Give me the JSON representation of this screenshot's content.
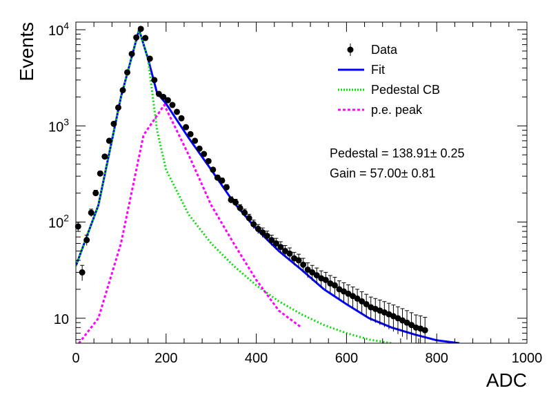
{
  "chart_data": {
    "type": "line",
    "xlabel": "ADC",
    "ylabel": "Events",
    "xlim": [
      0,
      1000
    ],
    "ylim": [
      5.5,
      12000
    ],
    "yscale": "log",
    "grid": false,
    "legend_position": "top-right",
    "x_ticks": [
      "0",
      "200",
      "400",
      "600",
      "800",
      "1000"
    ],
    "y_ticks": [
      {
        "value": 10,
        "base": "10",
        "exp": ""
      },
      {
        "value": 100,
        "base": "10",
        "exp": "2"
      },
      {
        "value": 1000,
        "base": "10",
        "exp": "3"
      },
      {
        "value": 10000,
        "base": "10",
        "exp": "4"
      }
    ],
    "legend": [
      {
        "label": "Data",
        "style": "marker",
        "color": "#000000"
      },
      {
        "label": "Fit",
        "style": "solid",
        "color": "#0000ff"
      },
      {
        "label": "Pedestal CB",
        "style": "dotted",
        "color": "#00dd00"
      },
      {
        "label": "p.e. peak",
        "style": "dashed",
        "color": "#ff00ff"
      }
    ],
    "annotations": [
      "Pedestal = 138.91± 0.25",
      "Gain = 57.00± 0.81"
    ],
    "series": [
      {
        "name": "Data",
        "color": "#000000",
        "points": [
          [
            5,
            90
          ],
          [
            14,
            30
          ],
          [
            24,
            65
          ],
          [
            34,
            125
          ],
          [
            44,
            200
          ],
          [
            54,
            320
          ],
          [
            64,
            480
          ],
          [
            74,
            700
          ],
          [
            84,
            1050
          ],
          [
            94,
            1550
          ],
          [
            104,
            2350
          ],
          [
            114,
            3600
          ],
          [
            124,
            5600
          ],
          [
            134,
            8300
          ],
          [
            144,
            10200
          ],
          [
            154,
            8200
          ],
          [
            164,
            5000
          ],
          [
            174,
            3000
          ],
          [
            184,
            2150
          ],
          [
            194,
            2000
          ],
          [
            204,
            1850
          ],
          [
            214,
            1650
          ],
          [
            224,
            1400
          ],
          [
            234,
            1200
          ],
          [
            244,
            970
          ],
          [
            254,
            820
          ],
          [
            264,
            700
          ],
          [
            274,
            580
          ],
          [
            284,
            510
          ],
          [
            294,
            430
          ],
          [
            304,
            350
          ],
          [
            314,
            290
          ],
          [
            324,
            270
          ],
          [
            334,
            230
          ],
          [
            344,
            170
          ],
          [
            354,
            160
          ],
          [
            364,
            140
          ],
          [
            374,
            125
          ],
          [
            384,
            110
          ],
          [
            394,
            95
          ],
          [
            404,
            85
          ],
          [
            414,
            78
          ],
          [
            424,
            72
          ],
          [
            434,
            65
          ],
          [
            444,
            60
          ],
          [
            454,
            55
          ],
          [
            464,
            50
          ],
          [
            474,
            47
          ],
          [
            484,
            42
          ],
          [
            494,
            40
          ],
          [
            504,
            36
          ],
          [
            514,
            32
          ],
          [
            524,
            30
          ],
          [
            534,
            28
          ],
          [
            544,
            26
          ],
          [
            554,
            25
          ],
          [
            564,
            23
          ],
          [
            574,
            22
          ],
          [
            584,
            20
          ],
          [
            594,
            19
          ],
          [
            604,
            18
          ],
          [
            614,
            17
          ],
          [
            624,
            16
          ],
          [
            634,
            15
          ],
          [
            644,
            14
          ],
          [
            654,
            13
          ],
          [
            664,
            12.5
          ],
          [
            674,
            12
          ],
          [
            684,
            11.5
          ],
          [
            694,
            11
          ],
          [
            704,
            10.5
          ],
          [
            714,
            10
          ],
          [
            724,
            9.5
          ],
          [
            734,
            9
          ],
          [
            744,
            8.5
          ],
          [
            754,
            8
          ],
          [
            764,
            7.8
          ],
          [
            774,
            7.5
          ]
        ]
      },
      {
        "name": "Fit",
        "color": "#0000ff",
        "points": [
          [
            0,
            35
          ],
          [
            50,
            150
          ],
          [
            100,
            2000
          ],
          [
            140,
            10000
          ],
          [
            160,
            5000
          ],
          [
            180,
            2200
          ],
          [
            200,
            1700
          ],
          [
            250,
            750
          ],
          [
            300,
            350
          ],
          [
            350,
            160
          ],
          [
            400,
            85
          ],
          [
            450,
            50
          ],
          [
            500,
            32
          ],
          [
            550,
            20
          ],
          [
            600,
            14
          ],
          [
            650,
            10
          ],
          [
            700,
            8
          ],
          [
            750,
            6.8
          ],
          [
            800,
            5.9
          ],
          [
            850,
            5.5
          ]
        ]
      },
      {
        "name": "Pedestal CB",
        "color": "#00dd00",
        "points": [
          [
            0,
            35
          ],
          [
            50,
            150
          ],
          [
            100,
            2000
          ],
          [
            140,
            10000
          ],
          [
            160,
            5000
          ],
          [
            180,
            900
          ],
          [
            200,
            350
          ],
          [
            250,
            120
          ],
          [
            300,
            60
          ],
          [
            350,
            35
          ],
          [
            400,
            22
          ],
          [
            450,
            15
          ],
          [
            500,
            11
          ],
          [
            550,
            8.5
          ],
          [
            600,
            7
          ],
          [
            650,
            6
          ],
          [
            700,
            5.5
          ]
        ]
      },
      {
        "name": "p.e. peak",
        "color": "#ff00ff",
        "points": [
          [
            0,
            5
          ],
          [
            50,
            10
          ],
          [
            100,
            60
          ],
          [
            150,
            800
          ],
          [
            196,
            1650
          ],
          [
            250,
            500
          ],
          [
            300,
            150
          ],
          [
            350,
            60
          ],
          [
            400,
            25
          ],
          [
            450,
            12
          ],
          [
            500,
            8
          ]
        ]
      }
    ]
  }
}
